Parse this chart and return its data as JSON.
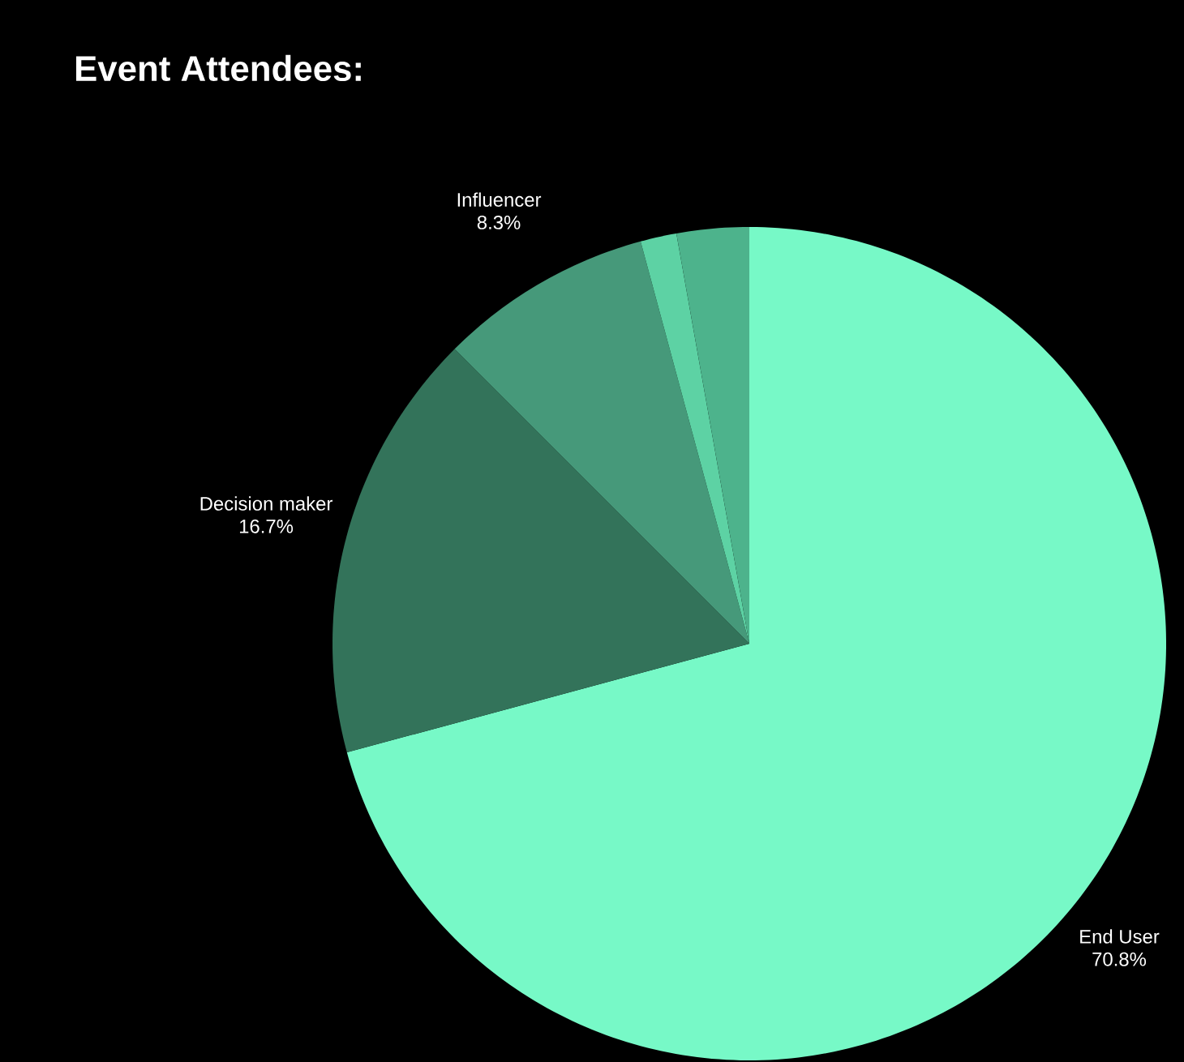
{
  "chart_data": {
    "type": "pie",
    "title": "Event Attendees:",
    "categories": [
      "End User",
      "Decision maker",
      "Influencer",
      null,
      null
    ],
    "values": [
      70.8,
      16.7,
      8.3,
      1.4,
      2.8
    ],
    "colors": [
      "#77f9c7",
      "#33735a",
      "#46997a",
      "#5dd2a4",
      "#4db38c"
    ],
    "value_labels": [
      "70.8%",
      "16.7%",
      "8.3%",
      null,
      null
    ]
  }
}
